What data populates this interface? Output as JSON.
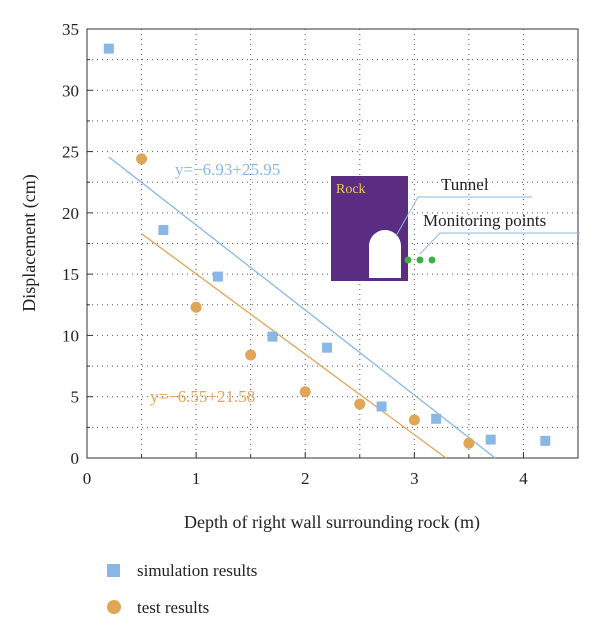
{
  "chart_data": {
    "type": "scatter",
    "xlabel": "Depth of right wall surrounding rock (m)",
    "ylabel": "Displacement (cm)",
    "xlim": [
      0,
      4.5
    ],
    "ylim": [
      0,
      35
    ],
    "xticks": [
      0,
      1,
      2,
      3,
      4
    ],
    "yticks": [
      0,
      5,
      10,
      15,
      20,
      25,
      30,
      35
    ],
    "grid": "dotted",
    "series": [
      {
        "name": "simulation results",
        "marker": "square",
        "color": "#8ab8e6",
        "x": [
          0.2,
          0.7,
          1.2,
          1.7,
          2.2,
          2.7,
          3.2,
          3.7,
          4.2
        ],
        "y": [
          33.4,
          18.6,
          14.8,
          9.9,
          9.0,
          4.2,
          3.2,
          1.5,
          1.4
        ]
      },
      {
        "name": "test results",
        "marker": "circle",
        "color": "#e0a556",
        "x": [
          0.5,
          1.0,
          1.5,
          2.0,
          2.5,
          3.0,
          3.5
        ],
        "y": [
          24.4,
          12.3,
          8.4,
          5.4,
          4.4,
          3.1,
          1.2
        ]
      }
    ],
    "fits": [
      {
        "label": "y=−6.93+25.95",
        "color": "#8ab8e6",
        "x": [
          0.2,
          3.74
        ],
        "y": [
          24.56,
          0
        ]
      },
      {
        "label": "y=−6.55+21.58",
        "color": "#e0a556",
        "x": [
          0.5,
          3.29
        ],
        "y": [
          18.3,
          0
        ]
      }
    ]
  },
  "inset": {
    "rock_label": "Rock",
    "tunnel_label": "Tunnel",
    "monitoring_label": "Monitoring points",
    "bg_color": "#5b2d82",
    "point_color": "#3cb043"
  }
}
